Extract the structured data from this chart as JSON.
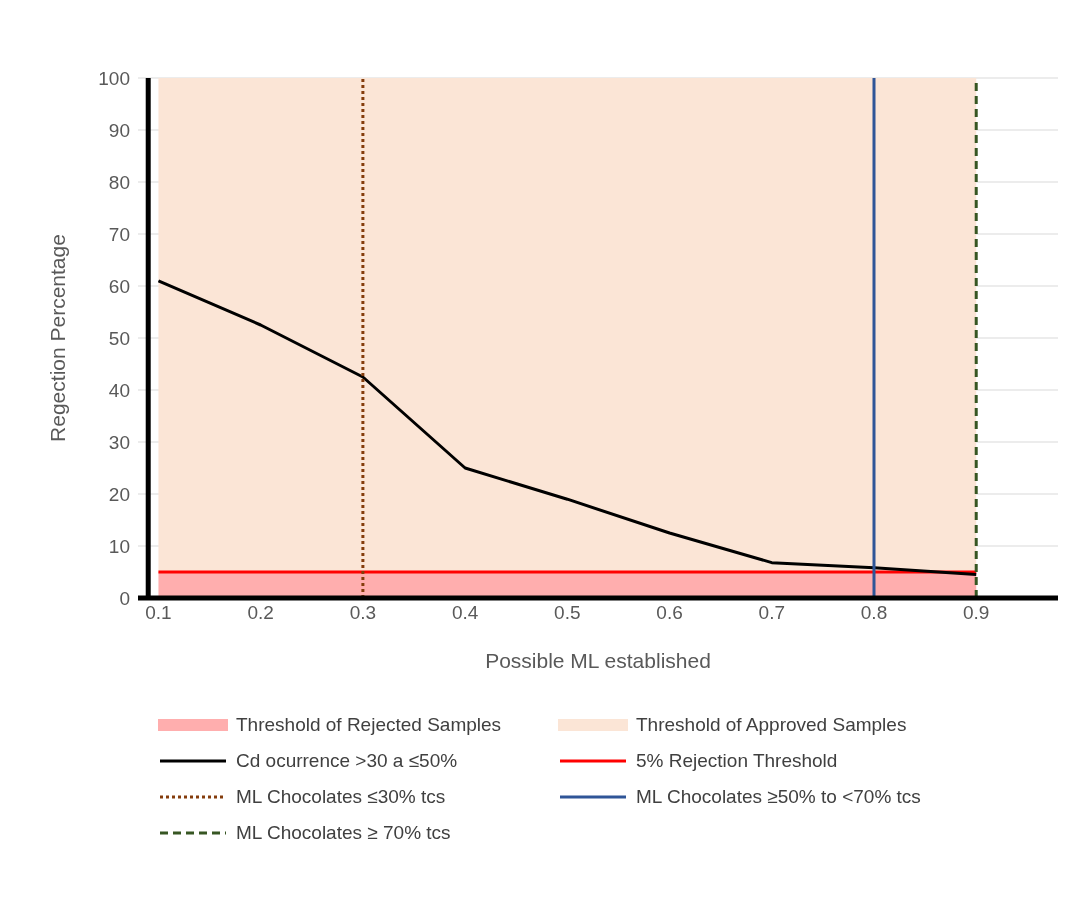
{
  "chart_data": {
    "type": "line",
    "x": [
      0.1,
      0.2,
      0.3,
      0.4,
      0.5,
      0.6,
      0.7,
      0.8,
      0.9
    ],
    "series": [
      {
        "name": "Cd ocurrence >30 a ≤50%",
        "color": "#000000",
        "values": [
          61,
          52.5,
          42.5,
          25,
          19,
          12.5,
          6.8,
          5.8,
          4.5
        ]
      }
    ],
    "xlabel": "Possible ML established",
    "ylabel": "Regection Percentage",
    "xlim": [
      0.08,
      0.98
    ],
    "xticks": [
      0.1,
      0.2,
      0.3,
      0.4,
      0.5,
      0.6,
      0.7,
      0.8,
      0.9
    ],
    "ylim": [
      0,
      100
    ],
    "yticks": [
      0,
      10,
      20,
      30,
      40,
      50,
      60,
      70,
      80,
      90,
      100
    ],
    "bands": [
      {
        "axis": "y",
        "from": 0,
        "to": 5,
        "label": "Threshold of Rejected Samples",
        "color": "#ffaeae"
      },
      {
        "axis": "y",
        "from": 5,
        "to": 100,
        "label": "Threshold of Approved Samples",
        "color": "#fbe5d6"
      }
    ],
    "ref_lines": [
      {
        "axis": "y",
        "value": 5,
        "label": "5% Rejection Threshold",
        "color": "#ff0000",
        "line_style": "solid"
      },
      {
        "axis": "x",
        "value": 0.3,
        "label": "ML Chocolates ≤30% tcs",
        "color": "#843c0c",
        "line_style": "dotted"
      },
      {
        "axis": "x",
        "value": 0.8,
        "label": "ML Chocolates ≥50% to <70% tcs",
        "color": "#2f5597",
        "line_style": "solid"
      },
      {
        "axis": "x",
        "value": 0.9,
        "label": "ML Chocolates ≥ 70% tcs",
        "color": "#375623",
        "line_style": "dashed"
      }
    ],
    "grid": "y",
    "legend": "bottom",
    "marker": "none",
    "line_style": "solid"
  }
}
